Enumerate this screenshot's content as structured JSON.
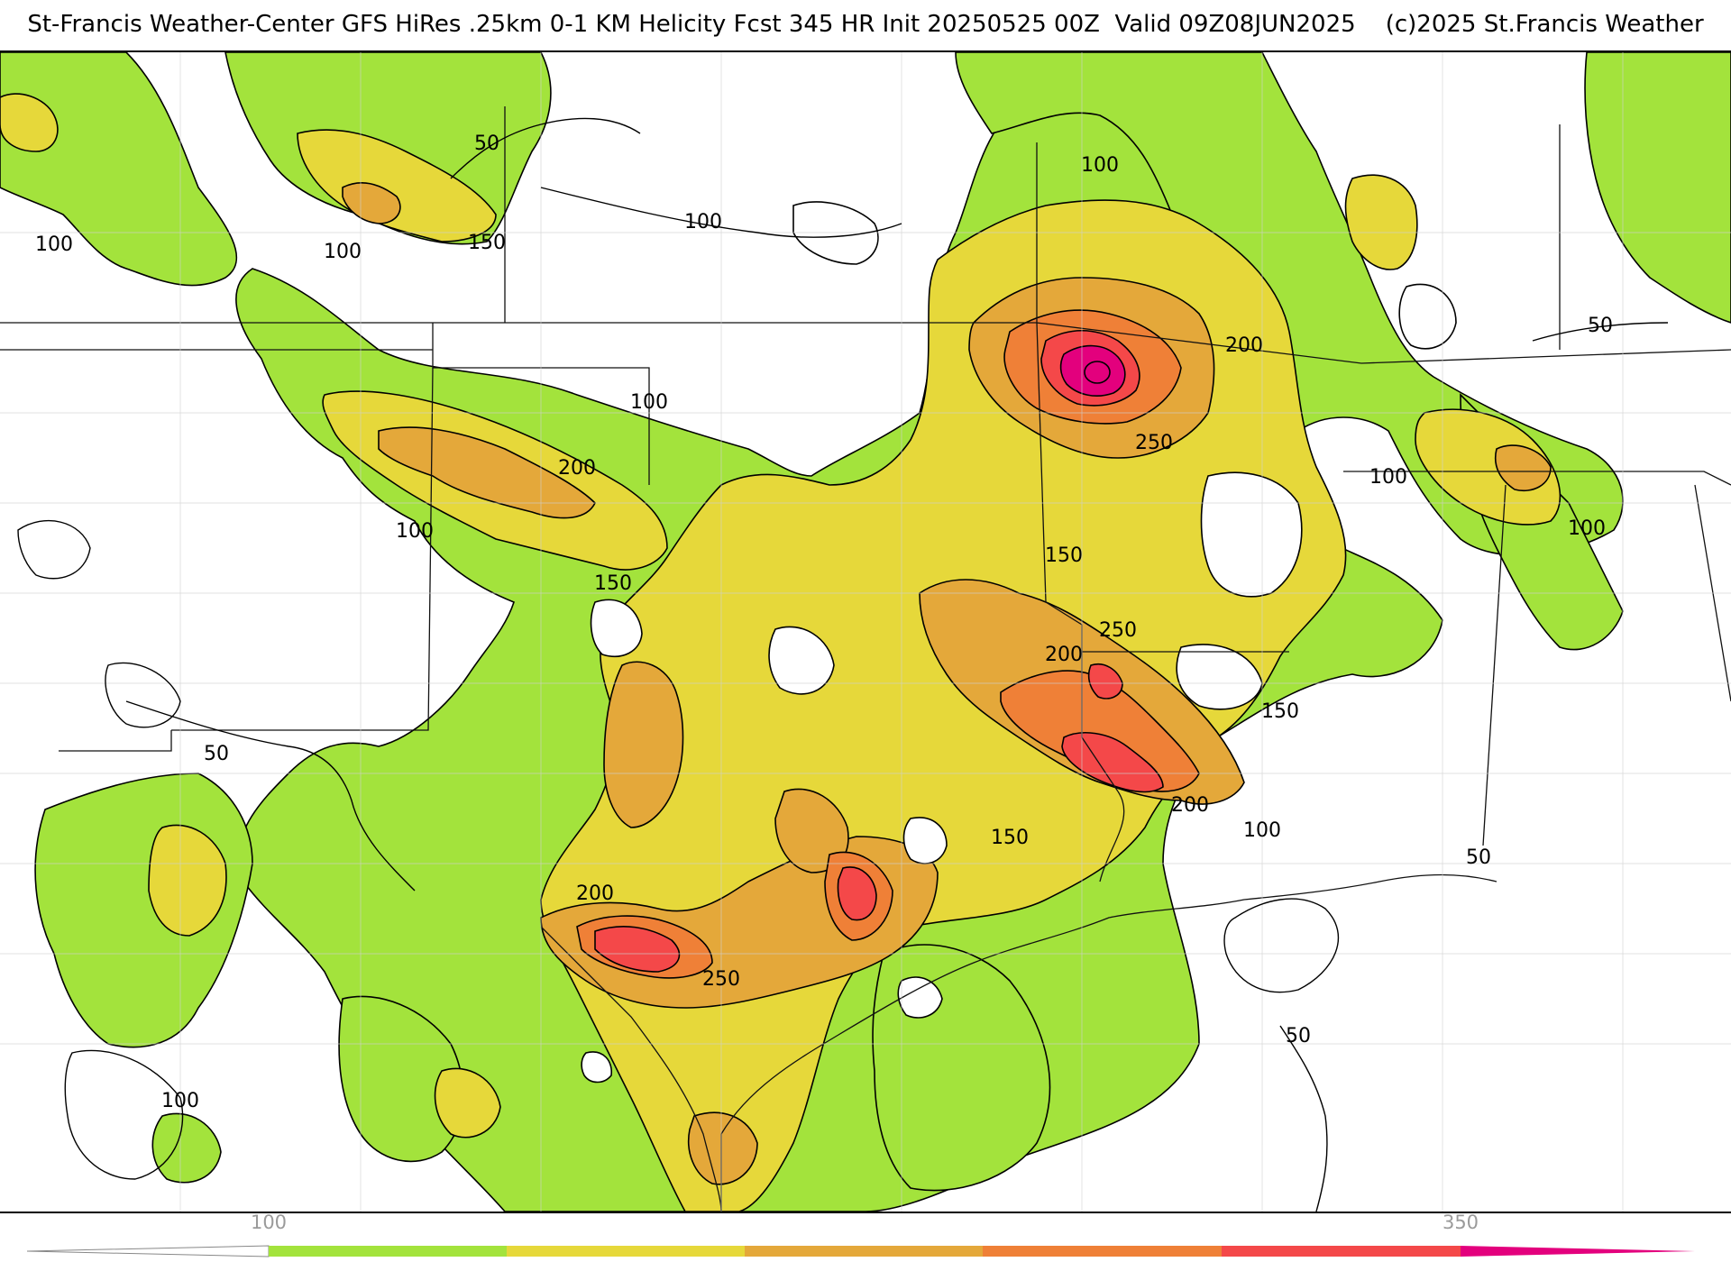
{
  "header": {
    "title": "St-Francis Weather-Center GFS HiRes .25km 0-1 KM Helicity Fcst 345 HR Init 20250525 00Z  Valid 09Z08JUN2025    (c)2025 St.Francis Weather"
  },
  "colors": {
    "c50": "#a3e33c",
    "c150": "#e6d83a",
    "c200": "#e4a83a",
    "c250": "#ef8037",
    "c300": "#f44849",
    "c350": "#e3007d",
    "water_border": "#000000",
    "county_line": "#d0d0d0"
  },
  "contour_labels": [
    {
      "text": "50"
    },
    {
      "text": "100"
    },
    {
      "text": "150"
    },
    {
      "text": "100"
    },
    {
      "text": "100"
    },
    {
      "text": "100"
    },
    {
      "text": "200"
    },
    {
      "text": "250"
    },
    {
      "text": "200"
    },
    {
      "text": "100"
    },
    {
      "text": "150"
    },
    {
      "text": "100"
    },
    {
      "text": "100"
    },
    {
      "text": "150"
    },
    {
      "text": "250"
    },
    {
      "text": "200"
    },
    {
      "text": "150"
    },
    {
      "text": "200"
    },
    {
      "text": "100"
    },
    {
      "text": "150"
    },
    {
      "text": "200"
    },
    {
      "text": "250"
    },
    {
      "text": "100"
    },
    {
      "text": "100"
    },
    {
      "text": "50"
    },
    {
      "text": "50"
    },
    {
      "text": "50"
    },
    {
      "text": "50"
    }
  ],
  "legend": {
    "ticks": [
      {
        "text": "100"
      },
      {
        "text": "350"
      }
    ]
  }
}
